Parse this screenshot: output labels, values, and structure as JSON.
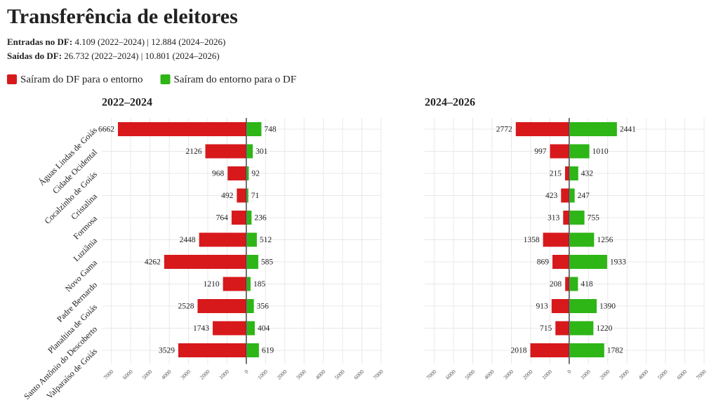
{
  "title": "Transferência de eleitores",
  "subtitle": [
    {
      "label": "Entradas no DF:",
      "text": "4.109 (2022–2024) | 12.884 (2024–2026)"
    },
    {
      "label": "Saídas do DF:",
      "text": "26.732 (2022–2024) | 10.801 (2024–2026)"
    }
  ],
  "chart_data": [
    {
      "type": "bar",
      "title": "2022–2024",
      "categories": [
        "Águas Lindas de Goiás",
        "Cidade Ocidental",
        "Cocalzinho de Goiás",
        "Cristalina",
        "Formosa",
        "Luziânia",
        "Novo Gama",
        "Padre Bernardo",
        "Planaltina de Goiás",
        "Santo Antônio do Descoberto",
        "Valparaíso de Goiás"
      ],
      "series": [
        {
          "name": "Saíram do DF para o entorno",
          "color": "#d7191c",
          "side": "left",
          "values": [
            6662,
            2126,
            968,
            492,
            764,
            2448,
            4262,
            1210,
            2528,
            1743,
            3529
          ]
        },
        {
          "name": "Saíram do entorno para o DF",
          "color": "#2eb516",
          "side": "right",
          "values": [
            748,
            301,
            92,
            71,
            236,
            512,
            585,
            185,
            356,
            404,
            619
          ]
        }
      ],
      "xlim": [
        -7500,
        7000
      ],
      "xticks": [
        {
          "value": -7000,
          "label": "7000"
        },
        {
          "value": -6000,
          "label": "6000"
        },
        {
          "value": -5000,
          "label": "5000"
        },
        {
          "value": -4000,
          "label": "4000"
        },
        {
          "value": -3000,
          "label": "3000"
        },
        {
          "value": -2000,
          "label": "2000"
        },
        {
          "value": -1000,
          "label": "1000"
        },
        0,
        1000,
        2000,
        3000,
        4000,
        5000,
        6000,
        7000
      ],
      "grid": true
    },
    {
      "type": "bar",
      "title": "2024–2026",
      "series": [
        {
          "name": "Saíram do DF para o entorno",
          "color": "#d7191c",
          "side": "left",
          "values": [
            2772,
            997,
            215,
            423,
            313,
            1358,
            869,
            208,
            913,
            715,
            2018
          ]
        },
        {
          "name": "Saíram do entorno para o DF",
          "color": "#2eb516",
          "side": "right",
          "values": [
            2441,
            1010,
            432,
            247,
            755,
            1256,
            1933,
            418,
            1390,
            1220,
            1782
          ]
        }
      ],
      "xlim": [
        -7500,
        7000
      ],
      "xticks": [
        {
          "value": -7000,
          "label": "7000"
        },
        {
          "value": -6000,
          "label": "6000"
        },
        {
          "value": -5000,
          "label": "5000"
        },
        {
          "value": -4000,
          "label": "4000"
        },
        {
          "value": -3000,
          "label": "3000"
        },
        {
          "value": -2000,
          "label": "2000"
        },
        {
          "value": -1000,
          "label": "1000"
        },
        0,
        1000,
        2000,
        3000,
        4000,
        5000,
        6000,
        7000
      ],
      "grid": true
    }
  ]
}
